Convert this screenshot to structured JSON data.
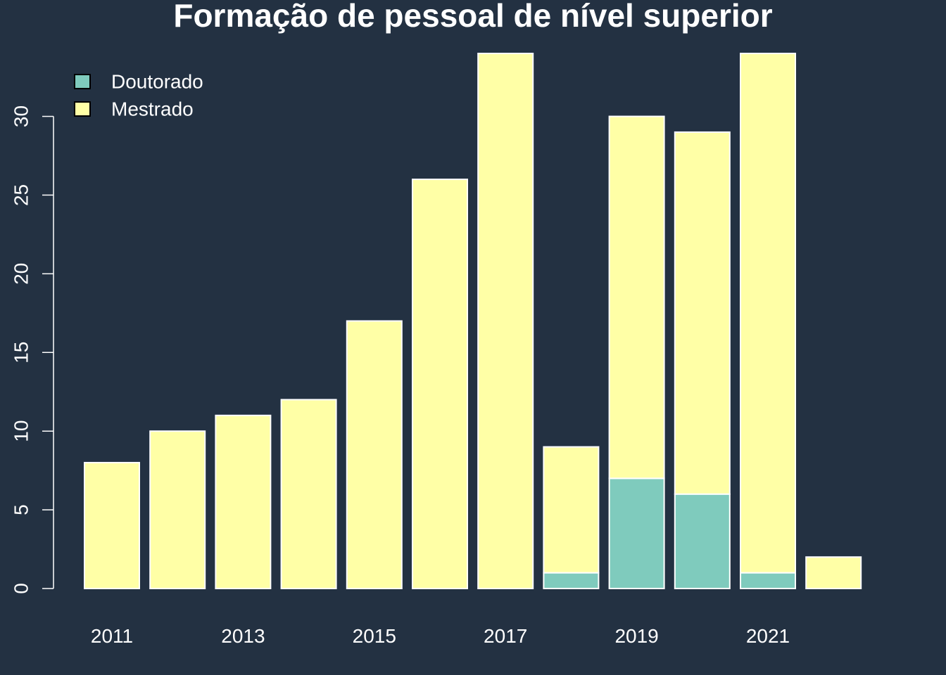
{
  "chart_data": {
    "type": "bar",
    "stacked": true,
    "title": "Formação de pessoal de nível superior",
    "xlabel": "",
    "ylabel": "",
    "categories": [
      "2011",
      "2012",
      "2013",
      "2014",
      "2015",
      "2016",
      "2017",
      "2018",
      "2019",
      "2020",
      "2021",
      "2022"
    ],
    "x_tick_labels": [
      "2011",
      "2013",
      "2015",
      "2017",
      "2019",
      "2021"
    ],
    "y_ticks": [
      0,
      5,
      10,
      15,
      20,
      25,
      30
    ],
    "ylim": [
      0,
      34
    ],
    "series": [
      {
        "name": "Doutorado",
        "color": "#7fcbbd",
        "values": [
          0,
          0,
          0,
          0,
          0,
          0,
          0,
          1,
          7,
          6,
          1,
          0
        ]
      },
      {
        "name": "Mestrado",
        "color": "#ffffa6",
        "values": [
          8,
          10,
          11,
          12,
          17,
          26,
          34,
          8,
          23,
          23,
          33,
          2
        ]
      }
    ],
    "legend": {
      "position": "top-left"
    },
    "grid": false,
    "background": "#233142",
    "bar_border_color": "#ffffff"
  }
}
